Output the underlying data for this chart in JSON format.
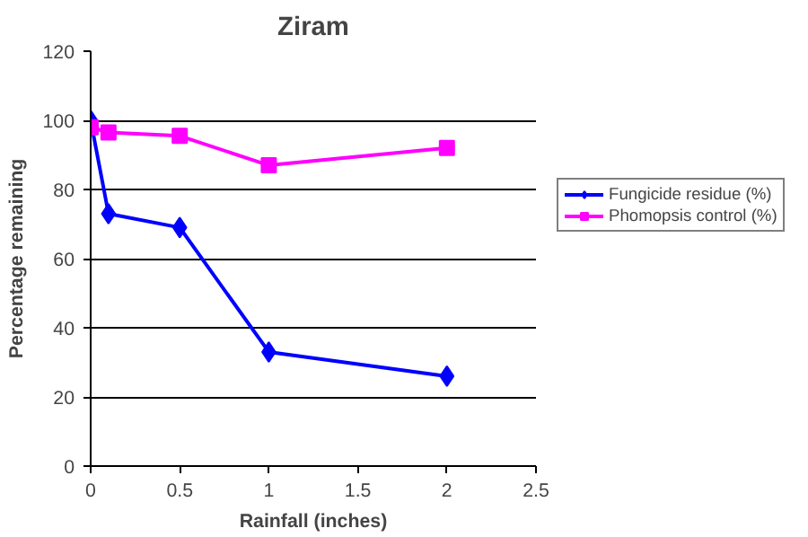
{
  "chart_data": {
    "type": "line",
    "title": "Ziram",
    "xlabel": "Rainfall (inches)",
    "ylabel": "Percentage remaining",
    "x": [
      0,
      0.1,
      0.5,
      1,
      2
    ],
    "series": [
      {
        "name": "Fungicide residue (%)",
        "color": "#0000ff",
        "marker": "diamond",
        "values": [
          100,
          73,
          69,
          33,
          26
        ]
      },
      {
        "name": "Phomopsis control (%)",
        "color": "#ff00ff",
        "marker": "square",
        "values": [
          98,
          96.5,
          95.5,
          87,
          92
        ]
      }
    ],
    "xlim": [
      0,
      2.5
    ],
    "xticks": [
      0,
      0.5,
      1,
      1.5,
      2,
      2.5
    ],
    "ylim": [
      0,
      120
    ],
    "yticks": [
      0,
      20,
      40,
      60,
      80,
      100,
      120
    ],
    "grid": "y",
    "legend": "right",
    "line_style": "solid"
  }
}
